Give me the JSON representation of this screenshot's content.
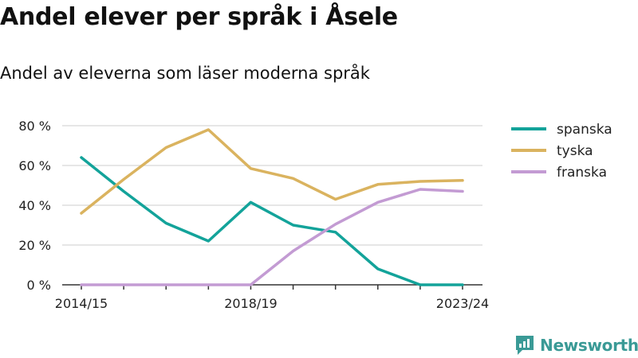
{
  "title": "Andel elever per språk i Åsele",
  "subtitle": "Andel av eleverna som läser moderna språk",
  "brand": {
    "name": "Newsworthy",
    "icon": "newsworthy-logo-icon"
  },
  "chart_data": {
    "type": "line",
    "x": [
      "2014/15",
      "2015/16",
      "2016/17",
      "2017/18",
      "2018/19",
      "2019/20",
      "2020/21",
      "2021/22",
      "2022/23",
      "2023/24"
    ],
    "x_tick_labels": [
      "2014/15",
      "2018/19",
      "2023/24"
    ],
    "y_tick_labels": [
      "0 %",
      "20 %",
      "40 %",
      "60 %",
      "80 %"
    ],
    "y_ticks": [
      0,
      20,
      40,
      60,
      80
    ],
    "ylim": [
      0,
      80
    ],
    "grid": true,
    "legend_position": "right",
    "series": [
      {
        "name": "spanska",
        "color": "#13a39a",
        "values": [
          64,
          47,
          31,
          22,
          41.5,
          30,
          26.5,
          8,
          0,
          0
        ]
      },
      {
        "name": "tyska",
        "color": "#dab35f",
        "values": [
          36,
          53,
          69,
          78,
          58.5,
          53.5,
          43,
          50.5,
          52,
          52.5
        ]
      },
      {
        "name": "franska",
        "color": "#c39bd3",
        "values": [
          0,
          0,
          0,
          0,
          0,
          17,
          30.5,
          41.5,
          48,
          47
        ]
      }
    ]
  }
}
